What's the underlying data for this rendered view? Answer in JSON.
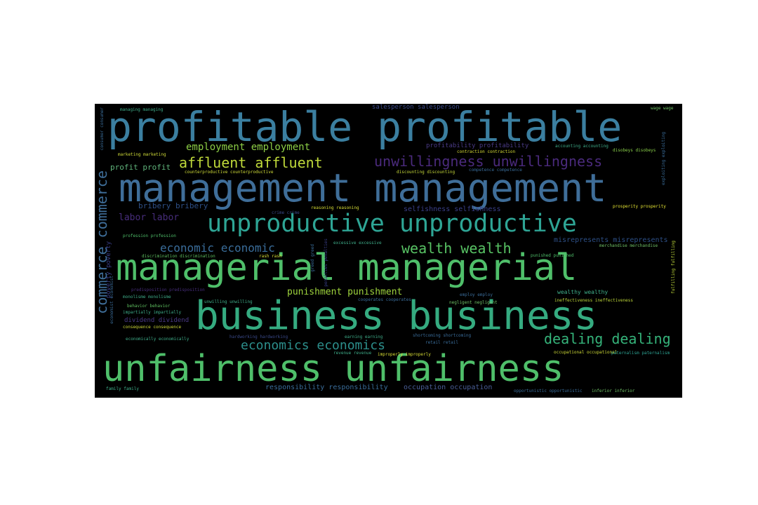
{
  "cloud": {
    "background": "#000000",
    "words": [
      {
        "text": "profitable profitable",
        "color": "#3b7fa0"
      },
      {
        "text": "management management",
        "color": "#3f6e99"
      },
      {
        "text": "managerial managerial",
        "color": "#4fbf6a"
      },
      {
        "text": "business business",
        "color": "#35ab80"
      },
      {
        "text": "unfairness unfairness",
        "color": "#4fbf6a"
      },
      {
        "text": "unproductive unproductive",
        "color": "#2ea595"
      },
      {
        "text": "employment employment",
        "color": "#8ccd45"
      },
      {
        "text": "affluent affluent",
        "color": "#bfd93a"
      },
      {
        "text": "unwillingness unwillingness",
        "color": "#4a2a7c"
      },
      {
        "text": "economic economic",
        "color": "#3a6d9a"
      },
      {
        "text": "wealth wealth",
        "color": "#58c364"
      },
      {
        "text": "economics economics",
        "color": "#2c8f8c"
      },
      {
        "text": "dealing dealing",
        "color": "#35b37a"
      },
      {
        "text": "commerce commerce",
        "color": "#3f6e99"
      },
      {
        "text": "punishment punishment",
        "color": "#9fd43d"
      },
      {
        "text": "labor labor",
        "color": "#472d7b"
      },
      {
        "text": "profit profit",
        "color": "#5fb37a"
      },
      {
        "text": "bribery bribery",
        "color": "#2d4f86"
      },
      {
        "text": "poverty poverty",
        "color": "#3a3f88"
      },
      {
        "text": "responsibility responsibility",
        "color": "#3a6d9a"
      },
      {
        "text": "occupation occupation",
        "color": "#4a5e98"
      },
      {
        "text": "salesperson salesperson",
        "color": "#3a4a8a"
      },
      {
        "text": "profitability profitability",
        "color": "#4a3a85"
      },
      {
        "text": "managing managing",
        "color": "#3fae8a"
      },
      {
        "text": "wage wage",
        "color": "#6fc066"
      },
      {
        "text": "marketing marketing",
        "color": "#d0dc38"
      },
      {
        "text": "contraction contraction",
        "color": "#d9df35"
      },
      {
        "text": "accounting accounting",
        "color": "#3fae8a"
      },
      {
        "text": "disobeys disobeys",
        "color": "#8ad04a"
      },
      {
        "text": "counterproductive counterproductive",
        "color": "#d0dc38"
      },
      {
        "text": "discounting discounting",
        "color": "#c6d93a"
      },
      {
        "text": "competence competence",
        "color": "#3a6d9a"
      },
      {
        "text": "crime crime",
        "color": "#3a4a8a"
      },
      {
        "text": "reasoning reasoning",
        "color": "#d9df35"
      },
      {
        "text": "selfishness selfishness",
        "color": "#3a3f88"
      },
      {
        "text": "prosperity prosperity",
        "color": "#e3e233"
      },
      {
        "text": "profession profession",
        "color": "#4fbf6a"
      },
      {
        "text": "discrimination discrimination",
        "color": "#5fc060"
      },
      {
        "text": "rash rash",
        "color": "#d9df35"
      },
      {
        "text": "excessive excessive",
        "color": "#3fae8a"
      },
      {
        "text": "misrepresents misrepresents",
        "color": "#2d4f86"
      },
      {
        "text": "merchandise merchandise",
        "color": "#6fc066"
      },
      {
        "text": "punished punished",
        "color": "#4fbf6a"
      },
      {
        "text": "predisposition predisposition",
        "color": "#472d7b"
      },
      {
        "text": "monolisme monolisme",
        "color": "#3fae8a"
      },
      {
        "text": "wealthy wealthy",
        "color": "#3fae8a"
      },
      {
        "text": "employ employ",
        "color": "#3a6d9a"
      },
      {
        "text": "cooperates cooperates",
        "color": "#3a6d9a"
      },
      {
        "text": "negligent negligent",
        "color": "#6fc066"
      },
      {
        "text": "ineffectiveness ineffectiveness",
        "color": "#bfd93a"
      },
      {
        "text": "behavior behavior",
        "color": "#5fc060"
      },
      {
        "text": "impartially impartially",
        "color": "#3fae8a"
      },
      {
        "text": "dividend dividend",
        "color": "#4a3a85"
      },
      {
        "text": "consequence consequence",
        "color": "#d0dc38"
      },
      {
        "text": "unwilling unwilling",
        "color": "#3fae8a"
      },
      {
        "text": "economically economically",
        "color": "#3fae8a"
      },
      {
        "text": "hardworking hardworking",
        "color": "#3a4a8a"
      },
      {
        "text": "earning earning",
        "color": "#3fae8a"
      },
      {
        "text": "shortcoming shortcoming",
        "color": "#3a6d9a"
      },
      {
        "text": "retail retail",
        "color": "#3a6d9a"
      },
      {
        "text": "occupational occupational",
        "color": "#d0dc38"
      },
      {
        "text": "paternalism paternalism",
        "color": "#2ea595"
      },
      {
        "text": "improperly improperly",
        "color": "#d9df35"
      },
      {
        "text": "revenue revenue",
        "color": "#3fae8a"
      },
      {
        "text": "family family",
        "color": "#3fae8a"
      },
      {
        "text": "opportunistic opportunistic",
        "color": "#3a6d9a"
      },
      {
        "text": "inferior inferior",
        "color": "#6fc066"
      },
      {
        "text": "fulfilling fulfilling",
        "color": "#bfd93a"
      },
      {
        "text": "economist economist",
        "color": "#3a6d9a"
      },
      {
        "text": "penalties penalties",
        "color": "#3a3f88"
      },
      {
        "text": "consumer consumer",
        "color": "#3a6d9a"
      },
      {
        "text": "greed greed",
        "color": "#3a6d9a"
      },
      {
        "text": "exploiting exploiting",
        "color": "#3a6d9a"
      }
    ]
  }
}
